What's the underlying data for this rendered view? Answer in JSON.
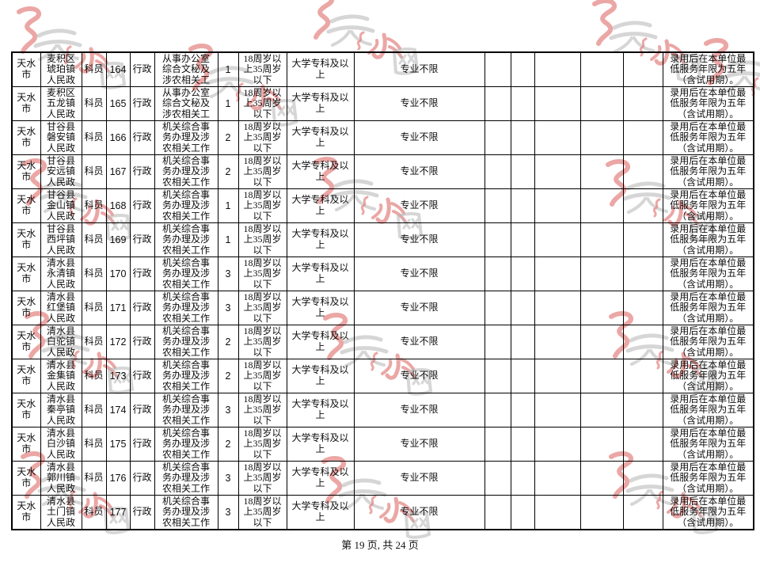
{
  "page": {
    "footer_text": "第 19 页, 共 24 页"
  },
  "watermark": {
    "label": "天水网",
    "red_color": "#e2827f",
    "gray_color": "#b4b4b4"
  },
  "table": {
    "column_keys": [
      "city",
      "unit",
      "rank",
      "code",
      "category",
      "duty",
      "count",
      "age",
      "education",
      "major",
      "extra1",
      "extra2",
      "extra3",
      "extra4",
      "extra5",
      "remark"
    ],
    "rows": [
      {
        "city": "天水\n市",
        "unit": "麦积区\n琥珀镇\n人民政",
        "rank": "科员",
        "code": "164",
        "category": "行政",
        "duty": "从事办公室\n综合文秘及\n涉农相关工",
        "count": "1",
        "age": "18周岁以\n上35周岁\n以下",
        "education": "大学专科及以\n上",
        "major": "专业不限",
        "remark": "录用后在本单位最\n低服务年限为五年\n（含试用期）。"
      },
      {
        "city": "天水\n市",
        "unit": "麦积区\n五龙镇\n人民政",
        "rank": "科员",
        "code": "165",
        "category": "行政",
        "duty": "从事办公室\n综合文秘及\n涉农相关工",
        "count": "1",
        "age": "18周岁以\n上35周岁\n以下",
        "education": "大学专科及以\n上",
        "major": "专业不限",
        "remark": "录用后在本单位最\n低服务年限为五年\n（含试用期）。"
      },
      {
        "city": "天水\n市",
        "unit": "甘谷县\n磐安镇\n人民政",
        "rank": "科员",
        "code": "166",
        "category": "行政",
        "duty": "机关综合事\n务办理及涉\n农相关工作",
        "count": "2",
        "age": "18周岁以\n上35周岁\n以下",
        "education": "大学专科及以\n上",
        "major": "专业不限",
        "remark": "录用后在本单位最\n低服务年限为五年\n（含试用期）。"
      },
      {
        "city": "天水\n市",
        "unit": "甘谷县\n安远镇\n人民政",
        "rank": "科员",
        "code": "167",
        "category": "行政",
        "duty": "机关综合事\n务办理及涉\n农相关工作",
        "count": "2",
        "age": "18周岁以\n上35周岁\n以下",
        "education": "大学专科及以\n上",
        "major": "专业不限",
        "remark": "录用后在本单位最\n低服务年限为五年\n（含试用期）。"
      },
      {
        "city": "天水\n市",
        "unit": "甘谷县\n金山镇\n人民政",
        "rank": "科员",
        "code": "168",
        "category": "行政",
        "duty": "机关综合事\n务办理及涉\n农相关工作",
        "count": "1",
        "age": "18周岁以\n上35周岁\n以下",
        "education": "大学专科及以\n上",
        "major": "专业不限",
        "remark": "录用后在本单位最\n低服务年限为五年\n（含试用期）。"
      },
      {
        "city": "天水\n市",
        "unit": "甘谷县\n西坪镇\n人民政",
        "rank": "科员",
        "code": "169",
        "category": "行政",
        "duty": "机关综合事\n务办理及涉\n农相关工作",
        "count": "1",
        "age": "18周岁以\n上35周岁\n以下",
        "education": "大学专科及以\n上",
        "major": "专业不限",
        "remark": "录用后在本单位最\n低服务年限为五年\n（含试用期）。"
      },
      {
        "city": "天水\n市",
        "unit": "清水县\n永清镇\n人民政",
        "rank": "科员",
        "code": "170",
        "category": "行政",
        "duty": "机关综合事\n务办理及涉\n农相关工作",
        "count": "3",
        "age": "18周岁以\n上35周岁\n以下",
        "education": "大学专科及以\n上",
        "major": "专业不限",
        "remark": "录用后在本单位最\n低服务年限为五年\n（含试用期）。"
      },
      {
        "city": "天水\n市",
        "unit": "清水县\n红堡镇\n人民政",
        "rank": "科员",
        "code": "171",
        "category": "行政",
        "duty": "机关综合事\n务办理及涉\n农相关工作",
        "count": "3",
        "age": "18周岁以\n上35周岁\n以下",
        "education": "大学专科及以\n上",
        "major": "专业不限",
        "remark": "录用后在本单位最\n低服务年限为五年\n（含试用期）。"
      },
      {
        "city": "天水\n市",
        "unit": "清水县\n白驼镇\n人民政",
        "rank": "科员",
        "code": "172",
        "category": "行政",
        "duty": "机关综合事\n务办理及涉\n农相关工作",
        "count": "2",
        "age": "18周岁以\n上35周岁\n以下",
        "education": "大学专科及以\n上",
        "major": "专业不限",
        "remark": "录用后在本单位最\n低服务年限为五年\n（含试用期）。"
      },
      {
        "city": "天水\n市",
        "unit": "清水县\n金集镇\n人民政",
        "rank": "科员",
        "code": "173",
        "category": "行政",
        "duty": "机关综合事\n务办理及涉\n农相关工作",
        "count": "2",
        "age": "18周岁以\n上35周岁\n以下",
        "education": "大学专科及以\n上",
        "major": "专业不限",
        "remark": "录用后在本单位最\n低服务年限为五年\n（含试用期）。"
      },
      {
        "city": "天水\n市",
        "unit": "清水县\n秦亭镇\n人民政",
        "rank": "科员",
        "code": "174",
        "category": "行政",
        "duty": "机关综合事\n务办理及涉\n农相关工作",
        "count": "3",
        "age": "18周岁以\n上35周岁\n以下",
        "education": "大学专科及以\n上",
        "major": "专业不限",
        "remark": "录用后在本单位最\n低服务年限为五年\n（含试用期）。"
      },
      {
        "city": "天水\n市",
        "unit": "清水县\n白沙镇\n人民政",
        "rank": "科员",
        "code": "175",
        "category": "行政",
        "duty": "机关综合事\n务办理及涉\n农相关工作",
        "count": "2",
        "age": "18周岁以\n上35周岁\n以下",
        "education": "大学专科及以\n上",
        "major": "专业不限",
        "remark": "录用后在本单位最\n低服务年限为五年\n（含试用期）。"
      },
      {
        "city": "天水\n市",
        "unit": "清水县\n郭川镇\n人民政",
        "rank": "科员",
        "code": "176",
        "category": "行政",
        "duty": "机关综合事\n务办理及涉\n农相关工作",
        "count": "3",
        "age": "18周岁以\n上35周岁\n以下",
        "education": "大学专科及以\n上",
        "major": "专业不限",
        "remark": "录用后在本单位最\n低服务年限为五年\n（含试用期）。"
      },
      {
        "city": "天水\n市",
        "unit": "清水县\n土门镇\n人民政",
        "rank": "科员",
        "code": "177",
        "category": "行政",
        "duty": "机关综合事\n务办理及涉\n农相关工作",
        "count": "3",
        "age": "18周岁以\n上35周岁\n以下",
        "education": "大学专科及以\n上",
        "major": "专业不限",
        "remark": "录用后在本单位最\n低服务年限为五年\n（含试用期）。"
      }
    ]
  }
}
